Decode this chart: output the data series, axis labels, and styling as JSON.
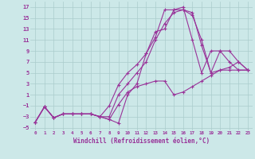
{
  "xlabel": "Windchill (Refroidissement éolien,°C)",
  "bg_color": "#cce8e8",
  "line_color": "#993399",
  "grid_color": "#aacccc",
  "xlim": [
    -0.5,
    23.5
  ],
  "ylim": [
    -5.5,
    18
  ],
  "xticks": [
    0,
    1,
    2,
    3,
    4,
    5,
    6,
    7,
    8,
    9,
    10,
    11,
    12,
    13,
    14,
    15,
    16,
    17,
    18,
    19,
    20,
    21,
    22,
    23
  ],
  "yticks": [
    -5,
    -3,
    -1,
    1,
    3,
    5,
    7,
    9,
    11,
    13,
    15,
    17
  ],
  "lines": [
    [
      -4,
      -1.2,
      -3.2,
      -2.5,
      -2.5,
      -2.5,
      -2.5,
      -3.0,
      -3.5,
      -0.8,
      1.5,
      2.5,
      3.0,
      3.5,
      3.5,
      1.0,
      1.5,
      2.5,
      3.5,
      4.5,
      5.5,
      5.5,
      5.5,
      5.5
    ],
    [
      -4,
      -1.2,
      -3.2,
      -2.5,
      -2.5,
      -2.5,
      -2.5,
      -3.0,
      -3.5,
      -4.2,
      1.0,
      3.0,
      8.5,
      11.5,
      16.5,
      16.5,
      16.5,
      15.5,
      11.0,
      5.0,
      5.5,
      6.0,
      7.0,
      5.5
    ],
    [
      -4,
      -1.2,
      -3.2,
      -2.5,
      -2.5,
      -2.5,
      -2.5,
      -3.0,
      -1.0,
      2.8,
      5.0,
      6.5,
      8.5,
      12.5,
      13.0,
      16.5,
      17.0,
      11.0,
      5.0,
      9.0,
      9.0,
      7.0,
      5.5,
      5.5
    ],
    [
      -4,
      -1.2,
      -3.2,
      -2.5,
      -2.5,
      -2.5,
      -2.5,
      -3.0,
      -3.0,
      1.0,
      3.0,
      5.0,
      7.0,
      11.0,
      14.0,
      16.0,
      16.5,
      16.0,
      10.0,
      5.0,
      9.0,
      9.0,
      7.0,
      5.5
    ]
  ]
}
